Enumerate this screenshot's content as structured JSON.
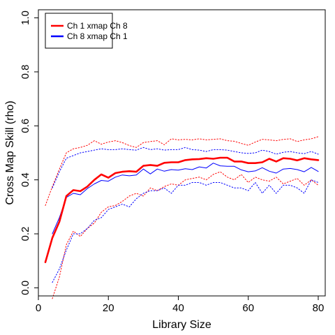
{
  "chart_data": {
    "type": "line",
    "xlabel": "Library Size",
    "ylabel": "Cross Map Skill (rho)",
    "xlim": [
      0,
      82
    ],
    "ylim": [
      -0.03,
      1.03
    ],
    "x_ticks": [
      0,
      20,
      40,
      60,
      80
    ],
    "x_tick_labels": [
      "0",
      "20",
      "40",
      "60",
      "80"
    ],
    "y_ticks": [
      0.0,
      0.2,
      0.4,
      0.6,
      0.8,
      1.0
    ],
    "y_tick_labels": [
      "0.0",
      "0.2",
      "0.4",
      "0.6",
      "0.8",
      "1.0"
    ],
    "grid": false,
    "legend_position": "top-left",
    "legend": [
      {
        "label": "Ch 1 xmap Ch 8",
        "color": "#ff0000"
      },
      {
        "label": "Ch 8  xmap Ch 1",
        "color": "#0000ff"
      }
    ],
    "x": [
      2,
      4,
      6,
      8,
      10,
      12,
      14,
      16,
      18,
      20,
      22,
      24,
      26,
      28,
      30,
      32,
      34,
      36,
      38,
      40,
      42,
      44,
      46,
      48,
      50,
      52,
      54,
      56,
      58,
      60,
      62,
      64,
      66,
      68,
      70,
      72,
      74,
      76,
      78,
      80
    ],
    "series": [
      {
        "name": "Ch 1 xmap Ch 8",
        "color": "#ff0000",
        "style": "solid",
        "width": 2.6,
        "values": [
          0.095,
          0.185,
          0.245,
          0.34,
          0.362,
          0.358,
          0.375,
          0.4,
          0.42,
          0.408,
          0.425,
          0.43,
          0.432,
          0.43,
          0.452,
          0.455,
          0.452,
          0.463,
          0.465,
          0.465,
          0.473,
          0.476,
          0.477,
          0.48,
          0.478,
          0.482,
          0.482,
          0.468,
          0.468,
          0.462,
          0.462,
          0.465,
          0.478,
          0.468,
          0.48,
          0.478,
          0.472,
          0.48,
          0.476,
          0.473
        ]
      },
      {
        "name": "Ch 8  xmap Ch 1",
        "color": "#0000ff",
        "style": "solid",
        "width": 1,
        "values": [
          null,
          0.2,
          0.26,
          0.335,
          0.35,
          0.345,
          0.368,
          0.385,
          0.398,
          0.395,
          0.41,
          0.418,
          0.415,
          0.418,
          0.44,
          0.422,
          0.44,
          0.432,
          0.438,
          0.436,
          0.441,
          0.438,
          0.448,
          0.444,
          0.462,
          0.452,
          0.45,
          0.45,
          0.437,
          0.43,
          0.433,
          0.445,
          0.432,
          0.425,
          0.44,
          0.442,
          0.438,
          0.43,
          0.446,
          0.431
        ]
      },
      {
        "name": "",
        "color": "#ff0000",
        "style": "dotted",
        "width": 1,
        "values": [
          0.305,
          0.375,
          0.44,
          0.5,
          0.515,
          0.52,
          0.528,
          0.545,
          0.532,
          0.54,
          0.545,
          0.538,
          0.527,
          0.52,
          0.538,
          0.542,
          0.545,
          0.53,
          0.552,
          0.548,
          0.55,
          0.548,
          0.552,
          0.548,
          0.55,
          0.552,
          0.545,
          0.543,
          0.535,
          0.528,
          0.54,
          0.55,
          0.548,
          0.545,
          0.55,
          0.552,
          0.542,
          0.548,
          0.552,
          0.56
        ]
      },
      {
        "name": "",
        "color": "#0000ff",
        "style": "dotted",
        "width": 1,
        "values": [
          null,
          0.37,
          0.43,
          0.48,
          0.49,
          0.5,
          0.505,
          0.51,
          0.515,
          0.512,
          0.512,
          0.515,
          0.512,
          0.51,
          0.52,
          0.512,
          0.515,
          0.51,
          0.512,
          0.512,
          0.52,
          0.512,
          0.51,
          0.505,
          0.512,
          0.512,
          0.51,
          0.505,
          0.5,
          0.498,
          0.5,
          0.51,
          0.505,
          0.495,
          0.502,
          0.505,
          0.5,
          0.497,
          0.505,
          0.495
        ]
      },
      {
        "name": "",
        "color": "#ff0000",
        "style": "dotted",
        "width": 1,
        "values": [
          null,
          -0.04,
          0.04,
          0.16,
          0.21,
          0.19,
          0.22,
          0.24,
          0.28,
          0.3,
          0.305,
          0.32,
          0.34,
          0.35,
          0.34,
          0.37,
          0.36,
          0.375,
          0.385,
          0.38,
          0.4,
          0.405,
          0.41,
          0.4,
          0.42,
          0.43,
          0.41,
          0.4,
          0.42,
          0.39,
          0.41,
          0.4,
          0.395,
          0.41,
          0.385,
          0.395,
          0.405,
          0.38,
          0.4,
          0.38
        ]
      },
      {
        "name": "",
        "color": "#0000ff",
        "style": "dotted",
        "width": 1,
        "values": [
          null,
          0.02,
          0.07,
          0.14,
          0.2,
          0.2,
          0.22,
          0.25,
          0.26,
          0.29,
          0.3,
          0.31,
          0.3,
          0.33,
          0.35,
          0.36,
          0.36,
          0.37,
          0.35,
          0.38,
          0.38,
          0.39,
          0.39,
          0.38,
          0.39,
          0.39,
          0.38,
          0.37,
          0.37,
          0.36,
          0.39,
          0.35,
          0.38,
          0.35,
          0.38,
          0.38,
          0.37,
          0.35,
          0.4,
          0.39
        ]
      }
    ]
  }
}
